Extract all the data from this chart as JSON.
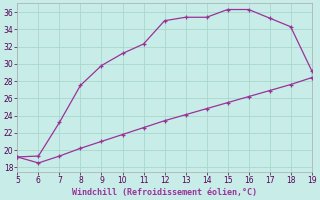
{
  "xlabel": "Windchill (Refroidissement éolien,°C)",
  "bg_color": "#c8ede8",
  "line_color": "#993399",
  "xlim": [
    5,
    19
  ],
  "ylim": [
    17.5,
    37.0
  ],
  "xticks": [
    5,
    6,
    7,
    8,
    9,
    10,
    11,
    12,
    13,
    14,
    15,
    16,
    17,
    18,
    19
  ],
  "yticks": [
    18,
    20,
    22,
    24,
    26,
    28,
    30,
    32,
    34,
    36
  ],
  "upper_x": [
    5,
    6,
    7,
    8,
    9,
    10,
    11,
    12,
    13,
    14,
    15,
    16,
    17,
    18,
    19
  ],
  "upper_y": [
    19.2,
    19.3,
    23.2,
    27.5,
    29.8,
    31.2,
    32.3,
    35.0,
    35.4,
    35.4,
    36.3,
    36.3,
    35.3,
    34.3,
    29.2
  ],
  "lower_x": [
    5,
    6,
    7,
    8,
    9,
    10,
    11,
    12,
    13,
    14,
    15,
    16,
    17,
    18,
    19
  ],
  "lower_y": [
    19.2,
    18.5,
    19.3,
    20.2,
    21.0,
    21.8,
    22.6,
    23.4,
    24.1,
    24.8,
    25.5,
    26.2,
    26.9,
    27.6,
    28.4
  ],
  "grid_color": "#aad8cc",
  "marker": "+",
  "marker_size": 3.5,
  "linewidth": 0.9
}
